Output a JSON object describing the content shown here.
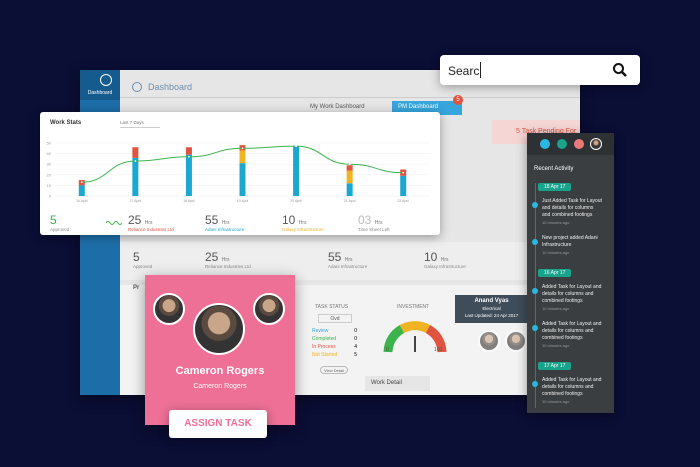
{
  "sidebar": {
    "label": "Dashboard"
  },
  "header": {
    "title": "Dashboard",
    "tabs": [
      "My Work Dashboard",
      "PM Dashboard"
    ],
    "badge": "5",
    "alert": "5 Task Pending For"
  },
  "search": {
    "value": "Searc"
  },
  "work_stats": {
    "title": "Work Stats",
    "period": "Last 7 Days",
    "chart": {
      "type": "bar",
      "stacked": true,
      "categories": [
        "16 April",
        "17 April",
        "18 April",
        "19 April",
        "20 April",
        "21 April",
        "22 April"
      ],
      "series": [
        {
          "name": "Adani Infrastructure",
          "color": "#1ba8d0",
          "values": [
            10,
            36,
            39,
            31,
            47,
            12,
            19
          ]
        },
        {
          "name": "Galaxy Infrastructure",
          "color": "#f0b323",
          "values": [
            0,
            0,
            0,
            12,
            0,
            12,
            0
          ]
        },
        {
          "name": "Reliance Industries Ltd",
          "color": "#e0533f",
          "values": [
            5,
            10,
            7,
            5,
            0,
            5,
            6
          ]
        }
      ],
      "line": {
        "color": "#3cb44b",
        "values": [
          13,
          33,
          37,
          45,
          47,
          30,
          22
        ]
      },
      "ylim": [
        0,
        50
      ],
      "yticks": [
        0,
        10,
        20,
        30,
        40,
        50
      ],
      "grid": true
    },
    "stats": [
      {
        "value": "5",
        "label": "Approved"
      },
      {
        "value": "25",
        "unit": "Hrs",
        "label": "Reliance Industries Ltd"
      },
      {
        "value": "55",
        "unit": "Hrs",
        "label": "Adani Infrastructure"
      },
      {
        "value": "10",
        "unit": "Hrs",
        "label": "Galaxy Infrastructure"
      },
      {
        "value": "03",
        "unit": "Hrs",
        "label": "Time Sheet Left"
      }
    ]
  },
  "background_stats": [
    {
      "value": "5",
      "label": "Approved"
    },
    {
      "value": "25",
      "unit": "Hrs",
      "label": "Reliance Industries Ltd"
    },
    {
      "value": "55",
      "unit": "Hrs",
      "label": "Adani Infrastructure"
    },
    {
      "value": "10",
      "unit": "Hrs",
      "label": "Galaxy Infrastructure"
    }
  ],
  "task_status": {
    "title": "TASK STATUS",
    "tab": "Ovd",
    "items": [
      {
        "label": "Review",
        "value": 0
      },
      {
        "label": "Completed",
        "value": 0
      },
      {
        "label": "In Process",
        "value": 4
      },
      {
        "label": "Not Started",
        "value": 5
      }
    ],
    "link": "View Detail"
  },
  "investment": {
    "title": "INVESTMENT",
    "min": "0",
    "max": "100"
  },
  "tooltip": {
    "name": "Anand Vyas",
    "role": "Electrical",
    "updated": "Last Updated: 24 Apr 2017"
  },
  "work_detail": "Work Detail",
  "profile": {
    "name": "Cameron Rogers",
    "subtitle": "Cameron Rogers",
    "button": "ASSIGN TASK"
  },
  "activity": {
    "title": "Recent Activity",
    "groups": [
      {
        "date": "18 Apr 17",
        "items": [
          {
            "text": "Just Added Task for Layout and details for columns and combined footings",
            "time": "10 minutes ago"
          },
          {
            "text": "New project added Adani Infrastructure",
            "time": "10 minutes ago"
          }
        ]
      },
      {
        "date": "16 Apr 17",
        "items": [
          {
            "text": "Added Task for Layout and details for columns and combined footings",
            "time": "10 minutes ago"
          },
          {
            "text": "Added Task for Layout and details for columns and combined footings",
            "time": "10 minutes ago"
          }
        ]
      },
      {
        "date": "17 Apr 17",
        "items": [
          {
            "text": "Added Task for Layout and details for columns and combined footings",
            "time": "10 minutes ago"
          }
        ]
      }
    ]
  }
}
